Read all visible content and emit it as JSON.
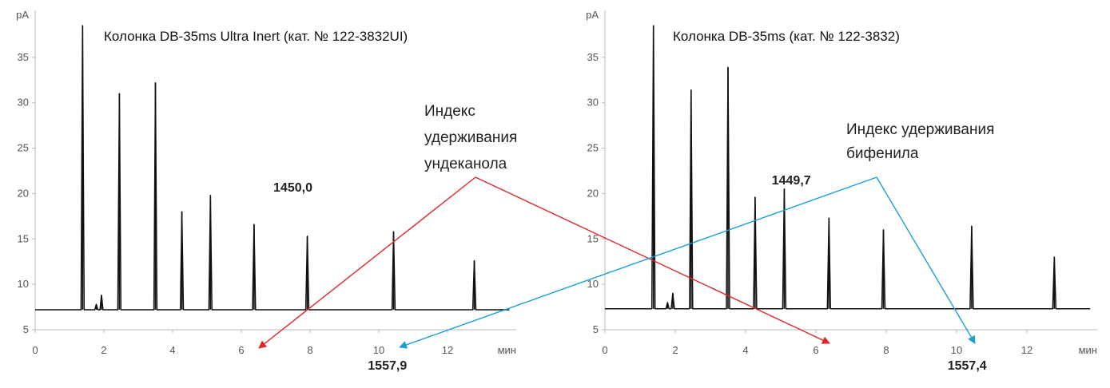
{
  "chart_data": [
    {
      "type": "line",
      "title": "Колонка DB-35ms Ultra Inert (кат. № 122-3832UI)",
      "ylabel": "pA",
      "xlabel": "мин",
      "xlim": [
        0,
        14
      ],
      "ylim": [
        5,
        40
      ],
      "xticks": [
        "0",
        "2",
        "4",
        "6",
        "8",
        "10",
        "12"
      ],
      "yticks": [
        "5",
        "10",
        "15",
        "20",
        "25",
        "30",
        "35"
      ],
      "baseline": 7.2,
      "peaks": [
        {
          "x": 1.38,
          "y": 38.5
        },
        {
          "x": 1.78,
          "y": 7.8
        },
        {
          "x": 1.93,
          "y": 8.8
        },
        {
          "x": 2.45,
          "y": 31.0
        },
        {
          "x": 3.5,
          "y": 32.2
        },
        {
          "x": 4.27,
          "y": 18.0
        },
        {
          "x": 5.1,
          "y": 19.8
        },
        {
          "x": 6.37,
          "y": 16.6
        },
        {
          "x": 7.92,
          "y": 15.3
        },
        {
          "x": 10.43,
          "y": 15.8
        },
        {
          "x": 12.78,
          "y": 12.6
        }
      ],
      "annotations": [
        {
          "text": "1450,0",
          "x": 7.5,
          "y": 20.2
        },
        {
          "text": "1557,9",
          "x": 10.25,
          "y": 0.6
        }
      ]
    },
    {
      "type": "line",
      "title": "Колонка DB-35ms (кат. № 122-3832)",
      "ylabel": "pA",
      "xlabel": "мин",
      "xlim": [
        0,
        14
      ],
      "ylim": [
        5,
        40
      ],
      "xticks": [
        "0",
        "2",
        "4",
        "6",
        "8",
        "10",
        "12"
      ],
      "yticks": [
        "5",
        "10",
        "15",
        "20",
        "25",
        "30",
        "35"
      ],
      "baseline": 7.3,
      "peaks": [
        {
          "x": 1.38,
          "y": 38.5
        },
        {
          "x": 1.78,
          "y": 8.0
        },
        {
          "x": 1.93,
          "y": 9.0
        },
        {
          "x": 2.45,
          "y": 31.4
        },
        {
          "x": 3.5,
          "y": 33.9
        },
        {
          "x": 4.27,
          "y": 19.6
        },
        {
          "x": 5.1,
          "y": 20.5
        },
        {
          "x": 6.37,
          "y": 17.3
        },
        {
          "x": 7.92,
          "y": 16.0
        },
        {
          "x": 10.43,
          "y": 16.4
        },
        {
          "x": 12.78,
          "y": 13.0
        }
      ],
      "annotations": [
        {
          "text": "1449,7",
          "x": 5.3,
          "y": 21.0
        },
        {
          "text": "1557,4",
          "x": 10.3,
          "y": 0.6
        }
      ]
    }
  ],
  "callouts": {
    "undecanol": {
      "label_lines": [
        "Индекс",
        "удерживания",
        "ундеканола"
      ],
      "color": "#e0262a"
    },
    "biphenyl": {
      "label_lines": [
        "Индекс удерживания",
        "бифенила"
      ],
      "color": "#1aa0d8"
    }
  }
}
